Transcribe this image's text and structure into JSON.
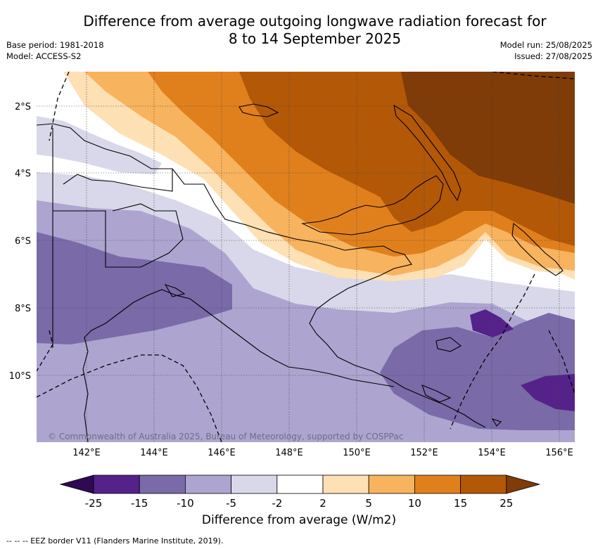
{
  "title": {
    "line1": "Difference from average outgoing longwave radiation forecast for",
    "line2": "8 to 14 September 2025"
  },
  "meta_left": {
    "base_period": "Base period: 1981-2018",
    "model": "Model: ACCESS-S2"
  },
  "meta_right": {
    "model_run": "Model run: 25/08/2025",
    "issued": "Issued: 27/08/2025"
  },
  "map": {
    "lat_labels": [
      "2°S",
      "4°S",
      "6°S",
      "8°S",
      "10°S"
    ],
    "lon_labels": [
      "142°E",
      "144°E",
      "146°E",
      "148°E",
      "150°E",
      "152°E",
      "154°E",
      "156°E"
    ],
    "copyright": "© Commonwealth of Australia 2025, Bureau of Meteorology, supported by COSPPac"
  },
  "colorbar": {
    "tick_labels": [
      "-25",
      "-15",
      "-10",
      "-5",
      "-2",
      "2",
      "5",
      "10",
      "15",
      "25"
    ],
    "colors": [
      "#2e0a55",
      "#55228a",
      "#7a6aa8",
      "#ada5d0",
      "#d8d8ea",
      "#ffffff",
      "#fde0b4",
      "#f8b35e",
      "#e0801c",
      "#b35807",
      "#7f3b08"
    ],
    "title": "Difference from average (W/m2)"
  },
  "footnote": "--  --  -- EEZ border V11 (Flanders Marine Institute, 2019)."
}
